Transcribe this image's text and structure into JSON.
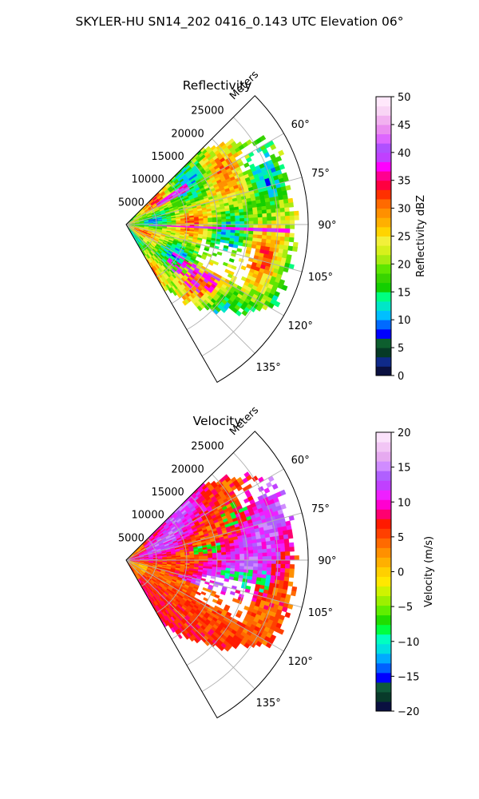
{
  "figure_title": "SKYLER-HU  SN14_202  0416_0.143 UTC Elevation 06°",
  "chart_data": [
    {
      "type": "polar-sector-heatmap",
      "title": "Reflectivity",
      "theta_range_deg": [
        45,
        150
      ],
      "theta_zero": "north",
      "theta_direction": "clockwise",
      "theta_ticks": [
        60,
        75,
        90,
        105,
        120,
        135
      ],
      "theta_tick_labels": [
        "60°",
        "75°",
        "90°",
        "105°",
        "120°",
        "135°"
      ],
      "r_range": [
        0,
        30000
      ],
      "r_ticks": [
        5000,
        10000,
        15000,
        20000,
        25000
      ],
      "r_tick_labels": [
        "5000",
        "10000",
        "15000",
        "20000",
        "25000"
      ],
      "r_label": "Meters",
      "grid": true,
      "colorbar": {
        "label": "Reflectivity dBZ",
        "range": [
          0,
          50
        ],
        "ticks": [
          0,
          5,
          10,
          15,
          20,
          25,
          30,
          35,
          40,
          45,
          50
        ],
        "tick_labels": [
          "0",
          "5",
          "10",
          "15",
          "20",
          "25",
          "30",
          "35",
          "40",
          "45",
          "50"
        ]
      },
      "field_summary": {
        "dominant_range": [
          20,
          30
        ],
        "max_approx": 40
      }
    },
    {
      "type": "polar-sector-heatmap",
      "title": "Velocity",
      "theta_range_deg": [
        45,
        150
      ],
      "theta_zero": "north",
      "theta_direction": "clockwise",
      "theta_ticks": [
        60,
        75,
        90,
        105,
        120,
        135
      ],
      "theta_tick_labels": [
        "60°",
        "75°",
        "90°",
        "105°",
        "120°",
        "135°"
      ],
      "r_range": [
        0,
        30000
      ],
      "r_ticks": [
        5000,
        10000,
        15000,
        20000,
        25000
      ],
      "r_tick_labels": [
        "5000",
        "10000",
        "15000",
        "20000",
        "25000"
      ],
      "r_label": "Meters",
      "grid": true,
      "colorbar": {
        "label": "Velocity (m/s)",
        "range": [
          -20,
          20
        ],
        "ticks": [
          -20,
          -15,
          -10,
          -5,
          0,
          5,
          10,
          15,
          20
        ],
        "tick_labels": [
          "−20",
          "−15",
          "−10",
          "−5",
          "0",
          "5",
          "10",
          "15",
          "20"
        ]
      },
      "field_summary": {
        "dominant_range": [
          5,
          15
        ],
        "min_approx": -12
      }
    }
  ],
  "colors": {
    "reflectivity_scale": [
      "#0a1040",
      "#0f2a8a",
      "#063a26",
      "#0d5e2e",
      "#0000ff",
      "#006aff",
      "#00bfff",
      "#00e6c8",
      "#00ff80",
      "#13cf00",
      "#38d400",
      "#5ee600",
      "#a8ec10",
      "#d7f01c",
      "#f2f03a",
      "#ffd400",
      "#ffb000",
      "#ff9000",
      "#ff6a00",
      "#ff3000",
      "#ff0040",
      "#ff0090",
      "#ff00ff",
      "#c040ff",
      "#b050ff",
      "#dd66ff",
      "#ea8df0",
      "#f2b1f0",
      "#f9d5f5",
      "#ffe8fb"
    ],
    "velocity_scale": [
      "#0a1040",
      "#083a2a",
      "#0f5a3a",
      "#0000ff",
      "#0060ff",
      "#00aaff",
      "#00e0e0",
      "#00ffc0",
      "#00ff40",
      "#20dd00",
      "#60ee00",
      "#9cf000",
      "#cff300",
      "#ffe800",
      "#ffd000",
      "#ffb000",
      "#ff9000",
      "#ff6a00",
      "#ff4000",
      "#ff1a00",
      "#ff0070",
      "#ff00d0",
      "#ee20ff",
      "#c040ff",
      "#b060ff",
      "#d08cff",
      "#e6aaf0",
      "#f2c6f5",
      "#fbe2fb"
    ]
  }
}
